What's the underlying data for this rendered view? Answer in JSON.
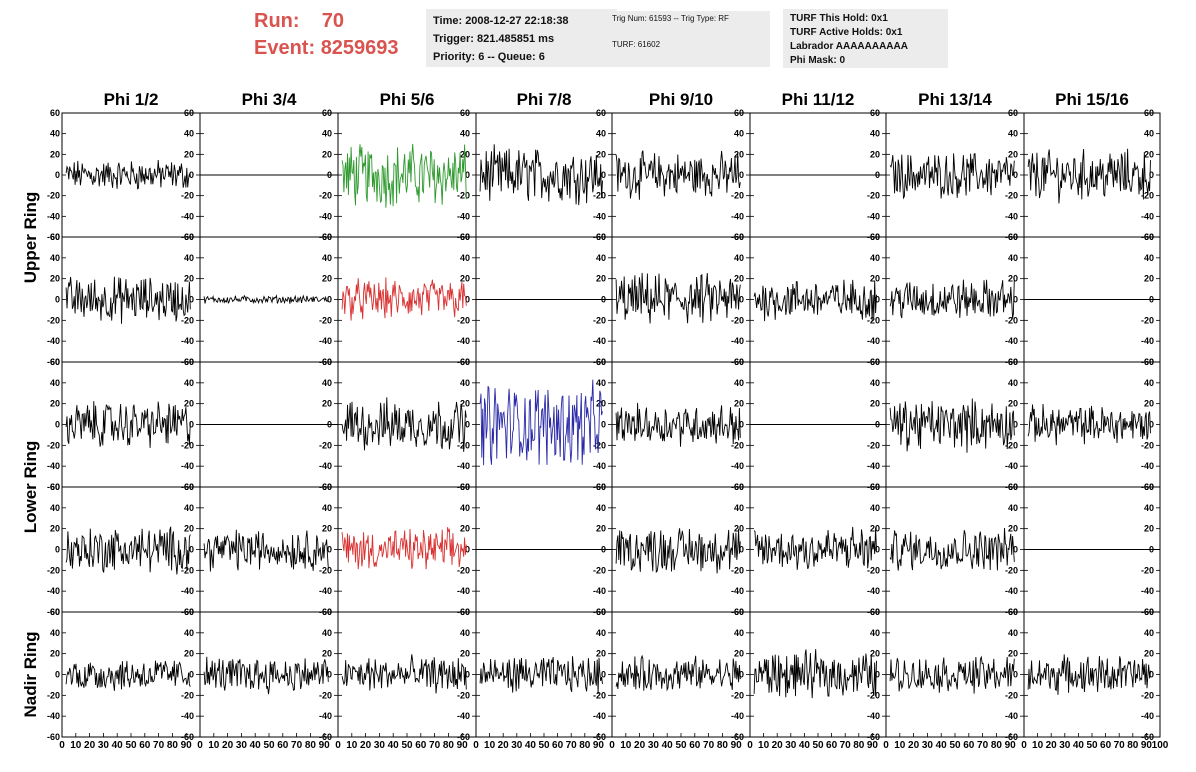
{
  "header": {
    "run_label": "Run:",
    "run_value": "70",
    "event_label": "Event:",
    "event_value": "8259693",
    "time": "Time: 2008-12-27 22:18:38",
    "trigger": "Trigger: 821.485851 ms",
    "priority": "Priority: 6 -- Queue: 6",
    "trig_num": "Trig Num: 61593 -- Trig Type: RF",
    "turf": "TURF: 61602",
    "turf_hold": "TURF This Hold: 0x1",
    "turf_active": "TURF Active Holds: 0x1",
    "labrador": "Labrador AAAAAAAAAA",
    "phi_mask": "Phi Mask: 0"
  },
  "columns": [
    "Phi 1/2",
    "Phi 3/4",
    "Phi 5/6",
    "Phi 7/8",
    "Phi 9/10",
    "Phi 11/12",
    "Phi 13/14",
    "Phi 15/16"
  ],
  "ring_labels": [
    "Upper Ring",
    "Lower Ring",
    "Nadir Ring"
  ],
  "colors": {
    "black": "#000000",
    "green": "#2e9a2e",
    "red": "#d93030",
    "blue": "#2a2aa8",
    "header_red": "#d9534f"
  },
  "chart_data": {
    "type": "line",
    "ylim": [
      -60,
      60
    ],
    "xlim": [
      0,
      100
    ],
    "y_ticks": [
      -60,
      -40,
      -20,
      0,
      20,
      40,
      60
    ],
    "x_ticks": [
      0,
      10,
      20,
      30,
      40,
      50,
      60,
      70,
      80,
      90,
      100
    ],
    "rows": [
      {
        "panels": [
          {
            "amplitude": 12,
            "color": "black"
          },
          {
            "amplitude": 0,
            "color": "black"
          },
          {
            "amplitude": 25,
            "color": "green"
          },
          {
            "amplitude": 22,
            "color": "black"
          },
          {
            "amplitude": 18,
            "color": "black"
          },
          {
            "amplitude": 0,
            "color": "black"
          },
          {
            "amplitude": 18,
            "color": "black"
          },
          {
            "amplitude": 20,
            "color": "black"
          }
        ]
      },
      {
        "panels": [
          {
            "amplitude": 18,
            "color": "black"
          },
          {
            "amplitude": 3,
            "color": "black"
          },
          {
            "amplitude": 16,
            "color": "red"
          },
          {
            "amplitude": 0,
            "color": "black"
          },
          {
            "amplitude": 20,
            "color": "black"
          },
          {
            "amplitude": 16,
            "color": "black"
          },
          {
            "amplitude": 16,
            "color": "black"
          },
          {
            "amplitude": 0,
            "color": "black"
          }
        ]
      },
      {
        "panels": [
          {
            "amplitude": 18,
            "color": "black"
          },
          {
            "amplitude": 0,
            "color": "black"
          },
          {
            "amplitude": 20,
            "color": "black"
          },
          {
            "amplitude": 32,
            "color": "blue"
          },
          {
            "amplitude": 16,
            "color": "black"
          },
          {
            "amplitude": 0,
            "color": "black"
          },
          {
            "amplitude": 20,
            "color": "black"
          },
          {
            "amplitude": 15,
            "color": "black"
          }
        ]
      },
      {
        "panels": [
          {
            "amplitude": 18,
            "color": "black"
          },
          {
            "amplitude": 16,
            "color": "black"
          },
          {
            "amplitude": 16,
            "color": "red"
          },
          {
            "amplitude": 0,
            "color": "black"
          },
          {
            "amplitude": 18,
            "color": "black"
          },
          {
            "amplitude": 18,
            "color": "black"
          },
          {
            "amplitude": 16,
            "color": "black"
          },
          {
            "amplitude": 0,
            "color": "black"
          }
        ]
      },
      {
        "panels": [
          {
            "amplitude": 13,
            "color": "black"
          },
          {
            "amplitude": 14,
            "color": "black"
          },
          {
            "amplitude": 14,
            "color": "black"
          },
          {
            "amplitude": 14,
            "color": "black"
          },
          {
            "amplitude": 14,
            "color": "black"
          },
          {
            "amplitude": 18,
            "color": "black"
          },
          {
            "amplitude": 14,
            "color": "black"
          },
          {
            "amplitude": 15,
            "color": "black"
          }
        ]
      }
    ]
  }
}
